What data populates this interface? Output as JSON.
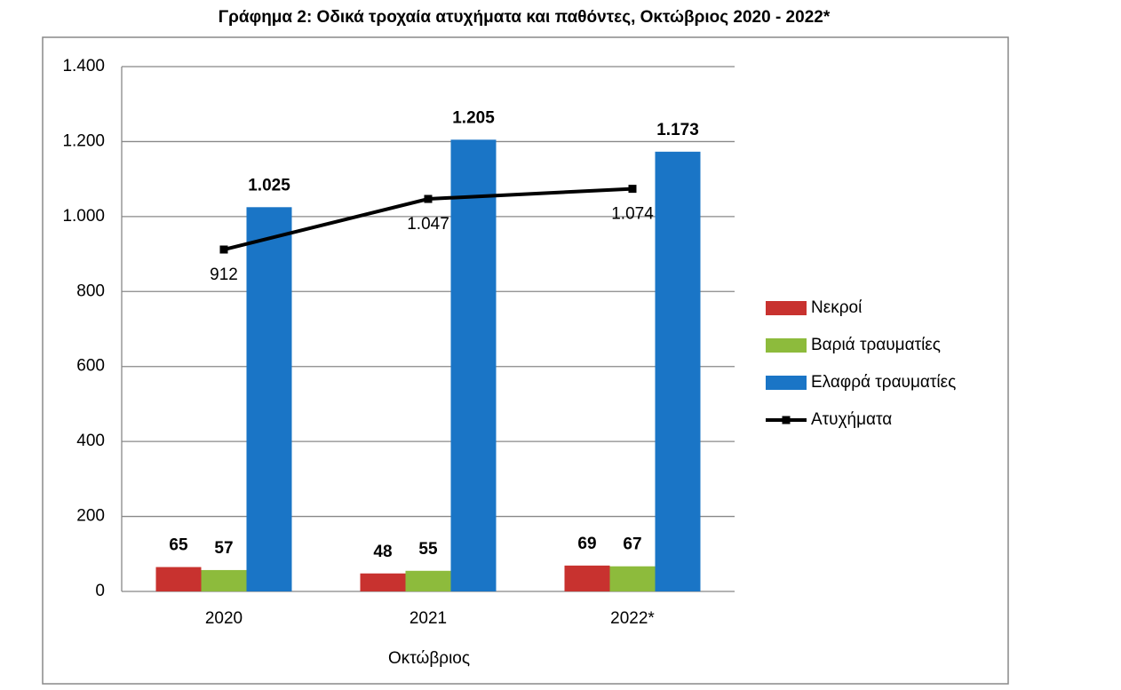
{
  "chart_data": {
    "type": "bar",
    "title": "Γράφημα 2: Οδικά τροχαία ατυχήματα και παθόντες, Οκτώβριος 2020 - 2022*",
    "x_label": "Οκτώβριος",
    "categories": [
      "2020",
      "2021",
      "2022*"
    ],
    "series": [
      {
        "name": "Νεκροί",
        "type": "bar",
        "color": "#c8322f",
        "values": [
          65,
          48,
          69
        ]
      },
      {
        "name": "Βαριά τραυματίες",
        "type": "bar",
        "color": "#8dbb3c",
        "values": [
          57,
          55,
          67
        ]
      },
      {
        "name": "Ελαφρά τραυματίες",
        "type": "bar",
        "color": "#1a75c6",
        "values": [
          1025,
          1205,
          1173
        ],
        "value_labels": [
          "1.025",
          "1.205",
          "1.173"
        ]
      },
      {
        "name": "Ατυχήματα",
        "type": "line",
        "color": "#000000",
        "values": [
          912,
          1047,
          1074
        ],
        "value_labels": [
          "912",
          "1.047",
          "1.074"
        ]
      }
    ],
    "ylim": [
      0,
      1400
    ],
    "yticks": [
      0,
      200,
      400,
      600,
      800,
      {
        "value": 1000,
        "label": "1.000"
      },
      {
        "value": 1200,
        "label": "1.200"
      },
      {
        "value": 1400,
        "label": "1.400"
      }
    ],
    "grid": true
  }
}
